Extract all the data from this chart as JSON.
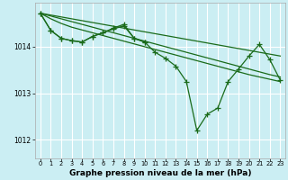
{
  "bg_color": "#cbeef3",
  "grid_color": "#ffffff",
  "line_color": "#1a6b1a",
  "xlabel": "Graphe pression niveau de la mer (hPa)",
  "xlabel_fontsize": 6.5,
  "xlim": [
    -0.5,
    23.5
  ],
  "ylim": [
    1011.6,
    1014.95
  ],
  "yticks": [
    1012,
    1013,
    1014
  ],
  "xticks": [
    0,
    1,
    2,
    3,
    4,
    5,
    6,
    7,
    8,
    9,
    10,
    11,
    12,
    13,
    14,
    15,
    16,
    17,
    18,
    19,
    20,
    21,
    22,
    23
  ],
  "series_straight": [
    [
      1014.72,
      1014.68,
      1014.64,
      1014.6,
      1014.56,
      1014.52,
      1014.48,
      1014.44,
      1014.4,
      1014.36,
      1014.32,
      1014.28,
      1014.24,
      1014.2,
      1014.16,
      1014.12,
      1014.08,
      1014.04,
      1014.0,
      1013.96,
      1013.92,
      1013.88,
      1013.84,
      1013.8
    ],
    [
      1014.72,
      1014.66,
      1014.6,
      1014.54,
      1014.48,
      1014.42,
      1014.36,
      1014.3,
      1014.24,
      1014.18,
      1014.12,
      1014.06,
      1014.0,
      1013.94,
      1013.88,
      1013.82,
      1013.76,
      1013.7,
      1013.64,
      1013.58,
      1013.52,
      1013.46,
      1013.4,
      1013.35
    ],
    [
      1014.72,
      1014.6,
      1014.5,
      1014.42,
      1014.36,
      1014.3,
      1014.24,
      1014.18,
      1014.12,
      1014.06,
      1014.0,
      1013.94,
      1013.88,
      1013.82,
      1013.76,
      1013.7,
      1013.64,
      1013.58,
      1013.52,
      1013.46,
      1013.4,
      1013.35,
      1013.3,
      1013.25
    ]
  ],
  "series_jagged": [
    1014.72,
    1014.35,
    1014.18,
    1014.13,
    1014.1,
    1014.22,
    1014.3,
    1014.38,
    1014.45,
    1014.18,
    1014.1,
    1013.88,
    1013.75,
    1013.58,
    1013.25,
    1012.2,
    1012.55,
    1012.68,
    1013.25,
    1013.52,
    1013.8,
    1014.05,
    1013.72,
    1013.28
  ],
  "series_top_jagged": [
    1014.72,
    1014.35,
    1014.18,
    1014.13,
    1014.1,
    1014.22,
    1014.3,
    1014.4,
    1014.48,
    1014.18,
    1014.1,
    null,
    null,
    null,
    null,
    null,
    null,
    null,
    null,
    null,
    null,
    null,
    null,
    null
  ],
  "line_width": 0.9,
  "marker_size": 2.5
}
